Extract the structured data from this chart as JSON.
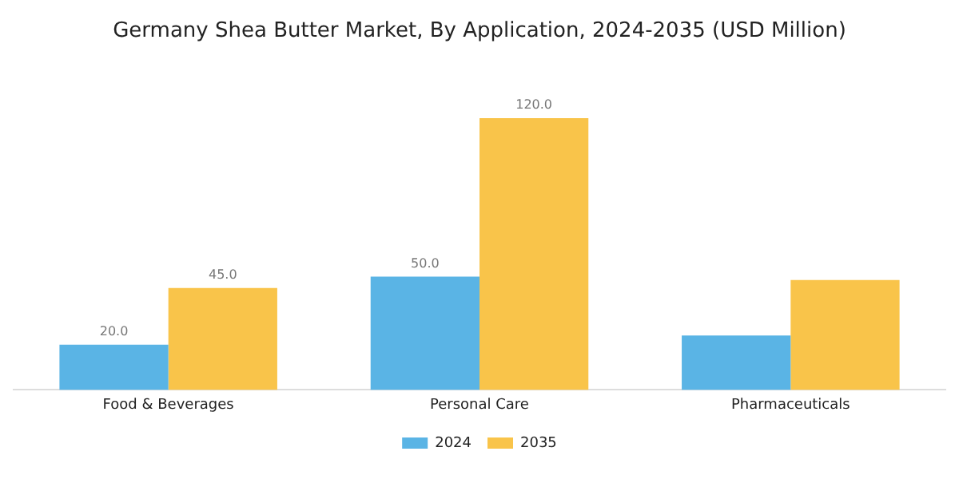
{
  "chart_data": {
    "type": "bar",
    "title": "Germany Shea Butter Market, By Application, 2024-2035 (USD Million)",
    "categories": [
      "Food & Beverages",
      "Personal Care",
      "Pharmaceuticals"
    ],
    "series": [
      {
        "name": "2024",
        "color": "#5ab4e5",
        "values": [
          20,
          50,
          24
        ],
        "value_labels": [
          "20.0",
          "50.0",
          null
        ]
      },
      {
        "name": "2035",
        "color": "#f9c44a",
        "values": [
          45,
          120,
          48.5
        ],
        "value_labels": [
          "45.0",
          "120.0",
          null
        ]
      }
    ],
    "legend": "bottom",
    "grid": false
  }
}
